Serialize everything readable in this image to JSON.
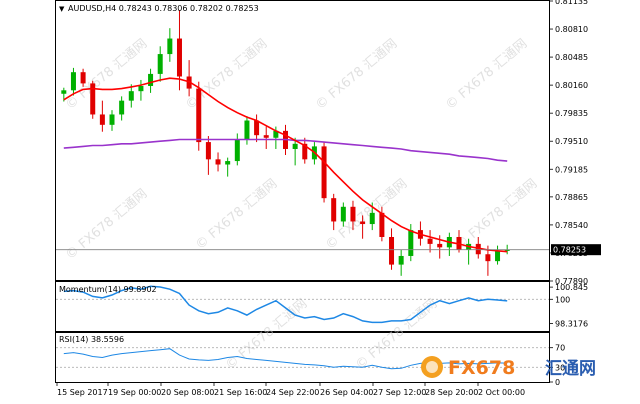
{
  "header": {
    "symbol_line": "AUDUSD,H4  0.78243 0.78306 0.78202 0.78253",
    "dropdown_glyph": "▼"
  },
  "main_pane": {
    "y_ticks": [
      "0.81135",
      "0.80810",
      "0.80485",
      "0.80160",
      "0.79835",
      "0.79510",
      "0.79185",
      "0.78865",
      "0.78540",
      "0.78215",
      "0.77890"
    ],
    "price_label": "0.78253",
    "watermark": "© FX678 汇通网"
  },
  "momentum_pane": {
    "title": "Momentum(14) 99.8902",
    "y_ticks": [
      "100.845",
      "100",
      "98.3176"
    ]
  },
  "rsi_pane": {
    "title": "RSI(14) 38.5596",
    "y_ticks": [
      "70",
      "30",
      "0"
    ]
  },
  "x_axis": {
    "labels": [
      "15 Sep 2017",
      "19 Sep 00:00",
      "20 Sep 08:00",
      "21 Sep 16:00",
      "24 Sep 22:00",
      "26 Sep 04:00",
      "27 Sep 12:00",
      "28 Sep 20:00",
      "2 Oct 00:00"
    ]
  },
  "logo": {
    "text_fx": "FX678",
    "text_cn": "汇通网"
  },
  "colors": {
    "up_candle": "#00b000",
    "down_candle": "#e00000",
    "ma_fast": "#ff0000",
    "ma_slow": "#9933cc",
    "indicator_line": "#1e88e5",
    "grid": "#d0d0d0"
  },
  "chart_data": {
    "type": "candlestick",
    "title": "AUDUSD,H4",
    "ylim": [
      0.7789,
      0.81135
    ],
    "last_close": 0.78253,
    "candles": [
      [
        0.8006,
        0.8013,
        0.7997,
        0.801
      ],
      [
        0.801,
        0.8036,
        0.8004,
        0.8031
      ],
      [
        0.8031,
        0.8035,
        0.8014,
        0.8018
      ],
      [
        0.8018,
        0.8021,
        0.7977,
        0.7982
      ],
      [
        0.7982,
        0.7998,
        0.7962,
        0.797
      ],
      [
        0.797,
        0.7987,
        0.7963,
        0.7982
      ],
      [
        0.7982,
        0.8003,
        0.7975,
        0.7998
      ],
      [
        0.7998,
        0.8017,
        0.799,
        0.8009
      ],
      [
        0.8009,
        0.8022,
        0.7998,
        0.8015
      ],
      [
        0.8015,
        0.8035,
        0.8007,
        0.8029
      ],
      [
        0.8029,
        0.8061,
        0.802,
        0.8052
      ],
      [
        0.8052,
        0.8082,
        0.8043,
        0.807
      ],
      [
        0.807,
        0.8103,
        0.801,
        0.8026
      ],
      [
        0.8026,
        0.8045,
        0.8003,
        0.8012
      ],
      [
        0.8012,
        0.802,
        0.794,
        0.795
      ],
      [
        0.795,
        0.7957,
        0.7912,
        0.793
      ],
      [
        0.793,
        0.7938,
        0.7916,
        0.7924
      ],
      [
        0.7924,
        0.7932,
        0.791,
        0.7928
      ],
      [
        0.7928,
        0.796,
        0.7923,
        0.7953
      ],
      [
        0.7953,
        0.798,
        0.7947,
        0.7975
      ],
      [
        0.7975,
        0.7982,
        0.795,
        0.7958
      ],
      [
        0.7958,
        0.7968,
        0.7942,
        0.7955
      ],
      [
        0.7955,
        0.7968,
        0.7942,
        0.7963
      ],
      [
        0.7963,
        0.797,
        0.7935,
        0.7942
      ],
      [
        0.7942,
        0.7955,
        0.7923,
        0.7948
      ],
      [
        0.7948,
        0.7955,
        0.7925,
        0.793
      ],
      [
        0.793,
        0.795,
        0.7924,
        0.7945
      ],
      [
        0.7945,
        0.795,
        0.788,
        0.7885
      ],
      [
        0.7885,
        0.789,
        0.7848,
        0.7858
      ],
      [
        0.7858,
        0.788,
        0.7852,
        0.7875
      ],
      [
        0.7875,
        0.7882,
        0.7848,
        0.7858
      ],
      [
        0.7858,
        0.7865,
        0.7838,
        0.7855
      ],
      [
        0.7855,
        0.788,
        0.7848,
        0.7868
      ],
      [
        0.7868,
        0.7875,
        0.7835,
        0.784
      ],
      [
        0.784,
        0.785,
        0.7802,
        0.7808
      ],
      [
        0.7808,
        0.7825,
        0.7795,
        0.7818
      ],
      [
        0.7818,
        0.7855,
        0.7812,
        0.7848
      ],
      [
        0.7848,
        0.7858,
        0.783,
        0.7838
      ],
      [
        0.7838,
        0.7848,
        0.7822,
        0.7832
      ],
      [
        0.7832,
        0.7842,
        0.7815,
        0.7828
      ],
      [
        0.7828,
        0.7845,
        0.7818,
        0.784
      ],
      [
        0.784,
        0.7848,
        0.7822,
        0.7825
      ],
      [
        0.7825,
        0.7838,
        0.7808,
        0.7832
      ],
      [
        0.7832,
        0.784,
        0.7815,
        0.782
      ],
      [
        0.782,
        0.783,
        0.7795,
        0.7812
      ],
      [
        0.7812,
        0.783,
        0.7808,
        0.7824
      ],
      [
        0.7824,
        0.7831,
        0.782,
        0.7825
      ]
    ],
    "ma_fast": [
      0.7999,
      0.8006,
      0.8011,
      0.8012,
      0.8011,
      0.8011,
      0.8012,
      0.8014,
      0.8016,
      0.8019,
      0.8022,
      0.8024,
      0.8023,
      0.802,
      0.8013,
      0.8005,
      0.7997,
      0.799,
      0.7984,
      0.7979,
      0.7975,
      0.7969,
      0.7963,
      0.7958,
      0.7952,
      0.7946,
      0.7938,
      0.7927,
      0.7915,
      0.7904,
      0.7893,
      0.7883,
      0.7875,
      0.7867,
      0.7859,
      0.7852,
      0.7847,
      0.7843,
      0.784,
      0.7837,
      0.7834,
      0.7832,
      0.7829,
      0.7827,
      0.7825,
      0.7824,
      0.7823
    ],
    "ma_slow": [
      0.7943,
      0.7944,
      0.7945,
      0.7946,
      0.7946,
      0.7947,
      0.7948,
      0.7948,
      0.7949,
      0.795,
      0.7951,
      0.7952,
      0.7953,
      0.7953,
      0.7953,
      0.7953,
      0.7953,
      0.7953,
      0.7953,
      0.7953,
      0.7953,
      0.7953,
      0.7953,
      0.7953,
      0.7952,
      0.7952,
      0.7951,
      0.795,
      0.7949,
      0.7948,
      0.7947,
      0.7946,
      0.7945,
      0.7944,
      0.7943,
      0.7942,
      0.794,
      0.7939,
      0.7938,
      0.7937,
      0.7936,
      0.7934,
      0.7933,
      0.7932,
      0.7931,
      0.7929,
      0.7928
    ],
    "momentum": {
      "ylim": [
        97.8,
        101.2
      ],
      "ref": 100,
      "values": [
        100.55,
        100.6,
        100.5,
        100.2,
        100.1,
        100.3,
        100.6,
        100.8,
        100.7,
        100.9,
        100.85,
        100.7,
        100.4,
        99.6,
        99.2,
        99.0,
        99.1,
        99.4,
        99.2,
        98.9,
        99.3,
        99.6,
        99.9,
        99.4,
        98.9,
        98.7,
        98.8,
        98.6,
        98.7,
        99.0,
        98.8,
        98.5,
        98.4,
        98.4,
        98.5,
        98.5,
        98.6,
        99.1,
        99.6,
        99.9,
        99.7,
        99.9,
        100.1,
        99.9,
        100.0,
        99.95,
        99.89
      ]
    },
    "rsi": {
      "ylim": [
        0,
        100
      ],
      "levels": [
        70,
        30
      ],
      "values": [
        58,
        60,
        57,
        52,
        50,
        55,
        58,
        60,
        62,
        64,
        66,
        68,
        55,
        47,
        45,
        44,
        46,
        50,
        52,
        48,
        46,
        44,
        42,
        40,
        38,
        36,
        35,
        33,
        30,
        32,
        31,
        30,
        34,
        30,
        27,
        28,
        34,
        38,
        40,
        38,
        39,
        37,
        38,
        37,
        38,
        39,
        38.56
      ]
    }
  }
}
